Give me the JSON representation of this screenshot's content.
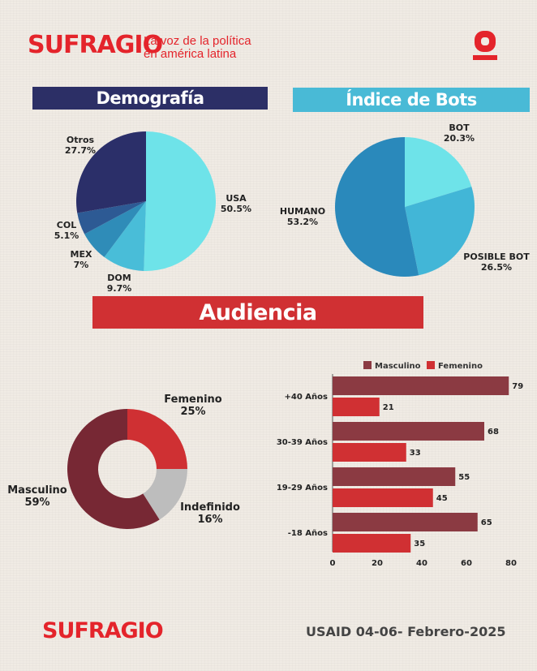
{
  "header": {
    "brand": "SUFRAGIO",
    "tagline_line1": "La voz de la política",
    "tagline_line2": "en américa latina",
    "logo_colors": {
      "red": "#e4242b"
    }
  },
  "sections": {
    "demografia": "Demografía",
    "bots": "Índice de Bots",
    "audiencia": "Audiencia"
  },
  "footer": {
    "brand": "SUFRAGIO",
    "date": "USAID 04-06- Febrero-2025"
  },
  "colors": {
    "navy": "#2c2f66",
    "cyan": "#49bad6",
    "red": "#d03033",
    "maroon": "#7a2a35"
  },
  "chart_data": [
    {
      "type": "pie",
      "title": "Demografía",
      "slices": [
        {
          "label": "USA",
          "pct_label": "50.5%",
          "value": 50.5,
          "color": "#6ee3e9"
        },
        {
          "label": "DOM",
          "pct_label": "9.7%",
          "value": 9.7,
          "color": "#49bdd8"
        },
        {
          "label": "MEX",
          "pct_label": "7%",
          "value": 7,
          "color": "#2f8cb8"
        },
        {
          "label": "COL",
          "pct_label": "5.1%",
          "value": 5.1,
          "color": "#2d5a94"
        },
        {
          "label": "Otros",
          "pct_label": "27.7%",
          "value": 27.7,
          "color": "#2b2f69"
        }
      ]
    },
    {
      "type": "pie",
      "title": "Índice de Bots",
      "slices": [
        {
          "label": "BOT",
          "pct_label": "20.3%",
          "value": 20.3,
          "color": "#6ee3e9"
        },
        {
          "label": "POSIBLE BOT",
          "pct_label": "26.5%",
          "value": 26.5,
          "color": "#42b6d7"
        },
        {
          "label": "HUMANO",
          "pct_label": "53.2%",
          "value": 53.2,
          "color": "#2a89bb"
        }
      ]
    },
    {
      "type": "pie",
      "title": "Audiencia",
      "donut": true,
      "slices": [
        {
          "label": "Femenino",
          "pct_label": "25%",
          "value": 25,
          "color": "#cf3033"
        },
        {
          "label": "Indefinido",
          "pct_label": "16%",
          "value": 16,
          "color": "#bdbdbd"
        },
        {
          "label": "Masculino",
          "pct_label": "59%",
          "value": 59,
          "color": "#772834"
        }
      ]
    },
    {
      "type": "bar",
      "orientation": "horizontal",
      "categories": [
        "+40 Años",
        "30-39 Años",
        "19-29 Años",
        "-18 Años"
      ],
      "series": [
        {
          "name": "Masculino",
          "values": [
            79,
            68,
            55,
            65
          ],
          "color": "#8b3a42"
        },
        {
          "name": "Femenino",
          "values": [
            21,
            33,
            45,
            35
          ],
          "color": "#d03033"
        }
      ],
      "xticks": [
        "0",
        "20",
        "40",
        "60",
        "80"
      ],
      "xlim": [
        0,
        80
      ],
      "legend": "top"
    }
  ]
}
